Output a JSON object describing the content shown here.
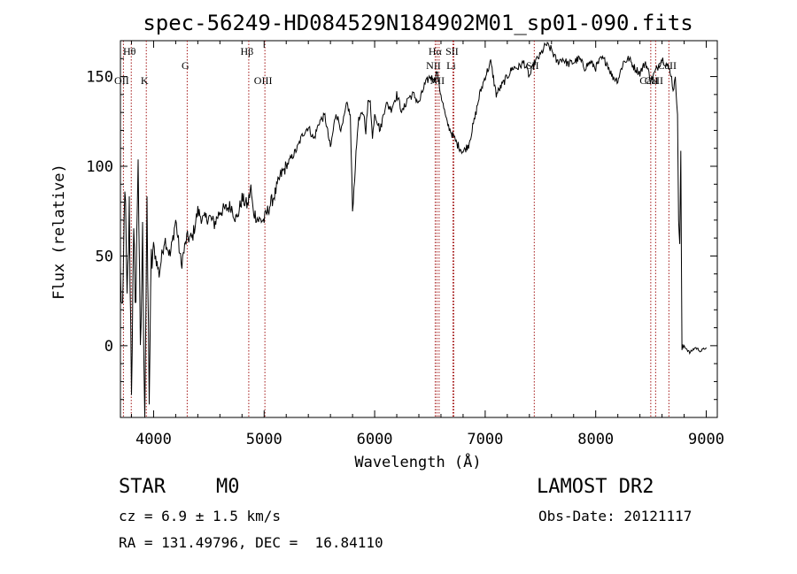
{
  "chart_data": {
    "type": "line",
    "title": "spec-56249-HD084529N184902M01_sp01-090.fits",
    "xlabel": "Wavelength (Å)",
    "ylabel": "Flux (relative)",
    "xlim": [
      3700,
      9100
    ],
    "ylim": [
      -40,
      170
    ],
    "xticks": [
      4000,
      5000,
      6000,
      7000,
      8000,
      9000
    ],
    "yticks": [
      0,
      50,
      100,
      150
    ],
    "line_color": "#000000",
    "marker_color": "#a31515",
    "spectral_lines": [
      {
        "label": "Hθ",
        "wavelength": 3798,
        "row": "top"
      },
      {
        "label": "OII",
        "wavelength": 3727,
        "row": "low"
      },
      {
        "label": "K",
        "wavelength": 3934,
        "row": "low"
      },
      {
        "label": "G",
        "wavelength": 4304,
        "row": "mid"
      },
      {
        "label": "Hβ",
        "wavelength": 4861,
        "row": "top"
      },
      {
        "label": "OIII",
        "wavelength": 5007,
        "row": "low"
      },
      {
        "label": "Hα",
        "wavelength": 6563,
        "row": "top"
      },
      {
        "label": "SII",
        "wavelength": 6716,
        "row": "top"
      },
      {
        "label": "NII",
        "wavelength": 6548,
        "row": "mid"
      },
      {
        "label": "Li",
        "wavelength": 6708,
        "row": "mid"
      },
      {
        "label": "NII",
        "wavelength": 6583,
        "row": "low"
      },
      {
        "label": "SII",
        "wavelength": 7444,
        "row": "mid"
      },
      {
        "label": "CaII",
        "wavelength": 8498,
        "row": "low"
      },
      {
        "label": "CaII",
        "wavelength": 8542,
        "row": "low"
      },
      {
        "label": "CaII",
        "wavelength": 8662,
        "row": "mid"
      }
    ],
    "series": [
      {
        "x": [
          3700,
          3720,
          3740,
          3760,
          3780,
          3800,
          3820,
          3840,
          3860,
          3880,
          3900,
          3920,
          3940,
          3960,
          3980,
          4000,
          4050,
          4100,
          4150,
          4200,
          4250,
          4300,
          4350,
          4400,
          4450,
          4500,
          4550,
          4600,
          4650,
          4700,
          4750,
          4800,
          4850,
          4880,
          4900,
          4950,
          5000,
          5050,
          5100,
          5150,
          5200,
          5250,
          5300,
          5350,
          5400,
          5450,
          5500,
          5550,
          5600,
          5650,
          5700,
          5750,
          5780,
          5800,
          5850,
          5900,
          5920,
          5940,
          5960,
          5980,
          6000,
          6050,
          6100,
          6150,
          6200,
          6250,
          6300,
          6350,
          6400,
          6450,
          6500,
          6540,
          6563,
          6580,
          6600,
          6650,
          6700,
          6750,
          6800,
          6850,
          6900,
          6950,
          7000,
          7050,
          7100,
          7150,
          7200,
          7250,
          7300,
          7350,
          7400,
          7450,
          7500,
          7550,
          7600,
          7650,
          7700,
          7750,
          7800,
          7850,
          7900,
          7950,
          8000,
          8050,
          8100,
          8150,
          8200,
          8250,
          8300,
          8350,
          8400,
          8450,
          8500,
          8550,
          8600,
          8650,
          8680,
          8700,
          8720,
          8740,
          8750,
          8760,
          8770,
          8780,
          8800,
          8850,
          8900,
          8950,
          9000
        ],
        "y": [
          40,
          10,
          95,
          20,
          75,
          -20,
          55,
          25,
          110,
          -10,
          60,
          -35,
          70,
          -25,
          45,
          55,
          40,
          60,
          50,
          70,
          45,
          60,
          60,
          75,
          70,
          72,
          68,
          75,
          76,
          78,
          70,
          82,
          78,
          88,
          75,
          70,
          70,
          78,
          85,
          95,
          100,
          105,
          110,
          118,
          122,
          115,
          125,
          128,
          110,
          130,
          120,
          135,
          128,
          75,
          125,
          130,
          120,
          135,
          138,
          115,
          130,
          120,
          135,
          132,
          140,
          130,
          138,
          140,
          135,
          145,
          150,
          148,
          153,
          146,
          140,
          125,
          118,
          112,
          108,
          112,
          125,
          140,
          150,
          158,
          140,
          145,
          150,
          155,
          155,
          158,
          150,
          158,
          162,
          168,
          165,
          158,
          160,
          157,
          158,
          160,
          155,
          158,
          155,
          160,
          158,
          150,
          148,
          158,
          160,
          155,
          152,
          158,
          148,
          154,
          160,
          156,
          152,
          143,
          148,
          131,
          68,
          58,
          108,
          -2,
          0,
          -4,
          -1,
          -3,
          -1
        ],
        "seed_noise": true
      }
    ]
  },
  "info": {
    "object_class": "STAR",
    "subclass": "M0",
    "survey": "LAMOST DR2",
    "redshift_line": "cz = 6.9 ± 1.5 km/s",
    "obs_date": "Obs-Date: 20121117",
    "coords": "RA = 131.49796, DEC =  16.84110"
  }
}
